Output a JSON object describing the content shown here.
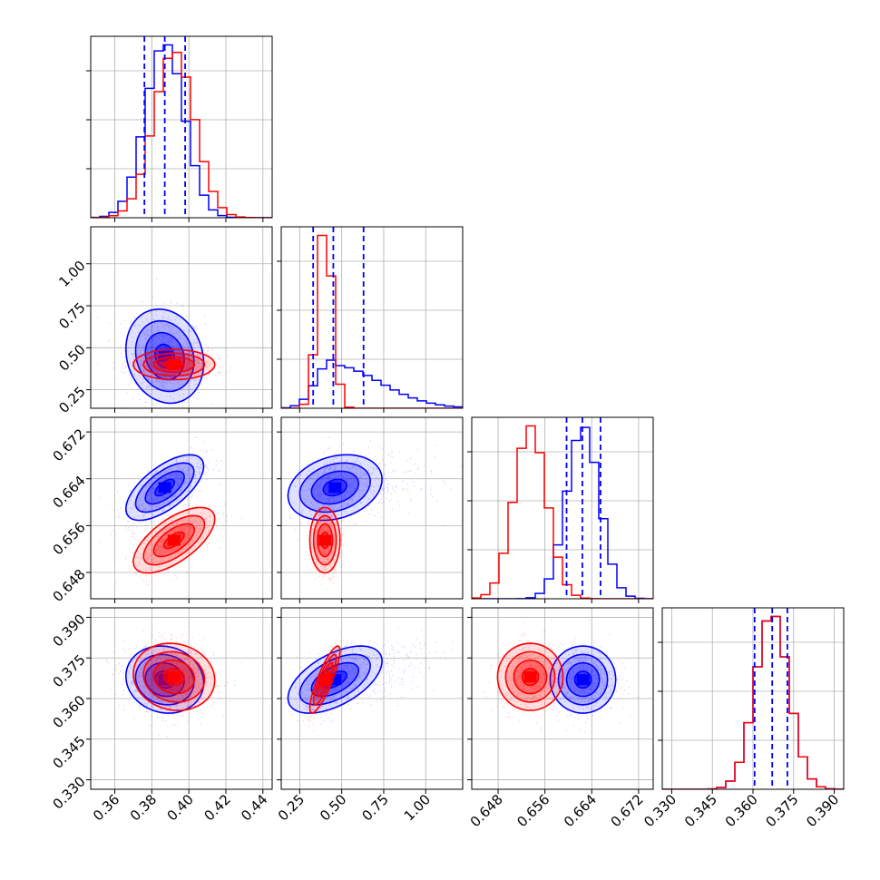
{
  "chart_data": {
    "type": "corner",
    "grid": true,
    "colors": {
      "blue": "#0000ff",
      "red": "#ff0000"
    },
    "series": [
      {
        "color": "#0000ff"
      },
      {
        "color": "#ff0000"
      }
    ],
    "parameters": [
      {
        "range": [
          0.347,
          0.445
        ],
        "ticks": [
          "0.36",
          "0.38",
          "0.40",
          "0.42",
          "0.44"
        ],
        "quantiles": [
          0.376,
          0.387,
          0.398
        ],
        "blue": {
          "mean": 0.387,
          "sd": 0.0105
        },
        "red": {
          "mean": 0.392,
          "sd": 0.011
        }
      },
      {
        "range": [
          0.14,
          1.22
        ],
        "ticks": [
          "0.25",
          "0.50",
          "0.75",
          "1.00"
        ],
        "quantiles": [
          0.33,
          0.45,
          0.63
        ],
        "blue": {
          "mean": 0.44,
          "sd": 0.15
        },
        "red": {
          "mean": 0.4,
          "sd": 0.045
        }
      },
      {
        "range": [
          0.6435,
          0.6745
        ],
        "ticks": [
          "0.648",
          "0.656",
          "0.664",
          "0.672"
        ],
        "quantiles": [
          0.6597,
          0.6624,
          0.6655
        ],
        "blue": {
          "mean": 0.6625,
          "sd": 0.0028
        },
        "red": {
          "mean": 0.6535,
          "sd": 0.0028
        }
      },
      {
        "range": [
          0.3265,
          0.3935
        ],
        "ticks": [
          "0.330",
          "0.345",
          "0.360",
          "0.375",
          "0.390"
        ],
        "quantiles": [
          0.3606,
          0.3671,
          0.3727
        ],
        "blue": {
          "mean": 0.367,
          "sd": 0.0062
        },
        "red": {
          "mean": 0.367,
          "sd": 0.0062
        }
      }
    ],
    "pairs": [
      {
        "row": 1,
        "col": 0,
        "blue": {
          "mx": 0.387,
          "my": 0.45,
          "sx": 0.0105,
          "sy": 0.14,
          "rho": -0.15
        },
        "red": {
          "mx": 0.392,
          "my": 0.4,
          "sx": 0.011,
          "sy": 0.045,
          "rho": 0.0
        }
      },
      {
        "row": 2,
        "col": 0,
        "blue": {
          "mx": 0.387,
          "my": 0.6625,
          "sx": 0.0105,
          "sy": 0.0028,
          "rho": 0.65
        },
        "red": {
          "mx": 0.392,
          "my": 0.6535,
          "sx": 0.011,
          "sy": 0.0028,
          "rho": 0.65
        }
      },
      {
        "row": 2,
        "col": 1,
        "blue": {
          "mx": 0.46,
          "my": 0.6625,
          "sx": 0.14,
          "sy": 0.0028,
          "rho": 0.25
        },
        "red": {
          "mx": 0.4,
          "my": 0.6535,
          "sx": 0.045,
          "sy": 0.0028,
          "rho": 0.0
        }
      },
      {
        "row": 3,
        "col": 0,
        "blue": {
          "mx": 0.387,
          "my": 0.367,
          "sx": 0.0105,
          "sy": 0.0062,
          "rho": -0.1
        },
        "red": {
          "mx": 0.392,
          "my": 0.368,
          "sx": 0.011,
          "sy": 0.0062,
          "rho": -0.1
        }
      },
      {
        "row": 3,
        "col": 1,
        "blue": {
          "mx": 0.46,
          "my": 0.367,
          "sx": 0.14,
          "sy": 0.0062,
          "rho": 0.55
        },
        "red": {
          "mx": 0.4,
          "my": 0.367,
          "sx": 0.045,
          "sy": 0.0062,
          "rho": 0.85
        }
      },
      {
        "row": 3,
        "col": 2,
        "blue": {
          "mx": 0.6625,
          "my": 0.367,
          "sx": 0.0028,
          "sy": 0.0062,
          "rho": 0.0
        },
        "red": {
          "mx": 0.6535,
          "my": 0.368,
          "sx": 0.0028,
          "sy": 0.0062,
          "rho": 0.0
        }
      }
    ]
  }
}
